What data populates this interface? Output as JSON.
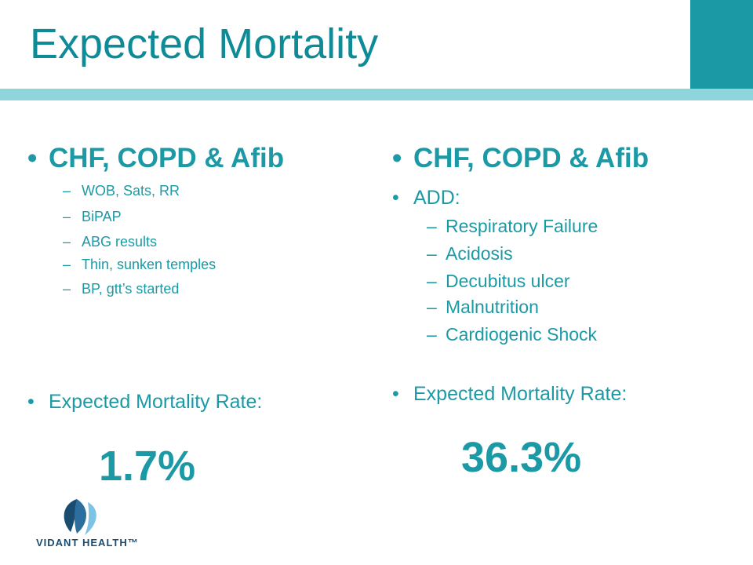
{
  "title": "Expected Mortality",
  "left": {
    "heading": "CHF, COPD & Afib",
    "items": [
      "WOB, Sats, RR",
      "BiPAP",
      "ABG results",
      "Thin, sunken temples",
      "BP, gtt’s started"
    ],
    "rate_label": "Expected Mortality Rate:",
    "rate_value": "1.7%"
  },
  "right": {
    "heading": "CHF, COPD & Afib",
    "add_label": "ADD:",
    "items": [
      "Respiratory Failure",
      "Acidosis",
      "Decubitus ulcer",
      "Malnutrition",
      "Cardiogenic Shock"
    ],
    "rate_label": "Expected Mortality Rate:",
    "rate_value": "36.3%"
  },
  "logo": {
    "text": "VIDANT HEALTH™"
  },
  "colors": {
    "accent": "#1b9aa6",
    "stripe": "#8fd6dc",
    "title": "#0e8b97",
    "logo_navy": "#1a4c70",
    "logo_light": "#7cc3e6"
  }
}
